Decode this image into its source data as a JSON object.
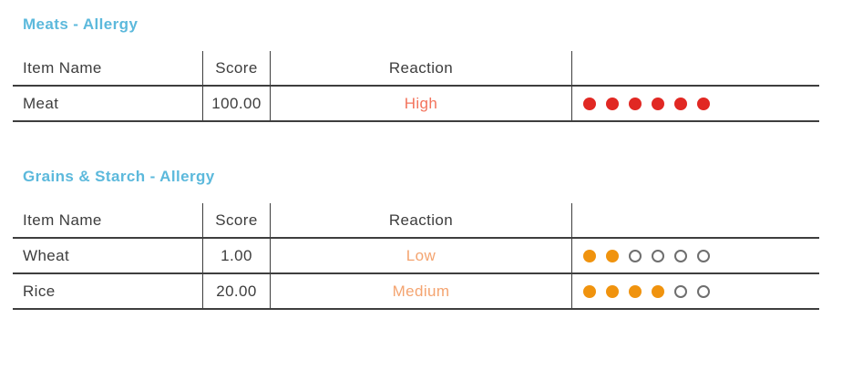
{
  "colors": {
    "section_title": "#5cb9dc",
    "body_text": "#3d3d3d",
    "rule": "#3e3e3e",
    "reaction_high": "#f3735c",
    "reaction_medium": "#f4a470",
    "reaction_low": "#f4a470",
    "dot_red": "#e12823",
    "dot_orange": "#f0930e",
    "dot_empty_border": "#6e6e6e"
  },
  "tables": [
    {
      "title": "Meats - Allergy",
      "headers": [
        "Item Name",
        "Score",
        "Reaction",
        ""
      ],
      "rows": [
        {
          "item": "Meat",
          "score": "100.00",
          "reaction": "High",
          "reaction_level": "high",
          "dots_filled": 6,
          "dots_total": 6,
          "dot_color": "red"
        }
      ]
    },
    {
      "title": "Grains & Starch - Allergy",
      "headers": [
        "Item Name",
        "Score",
        "Reaction",
        ""
      ],
      "rows": [
        {
          "item": "Wheat",
          "score": "1.00",
          "reaction": "Low",
          "reaction_level": "low",
          "dots_filled": 2,
          "dots_total": 6,
          "dot_color": "orange"
        },
        {
          "item": "Rice",
          "score": "20.00",
          "reaction": "Medium",
          "reaction_level": "medium",
          "dots_filled": 4,
          "dots_total": 6,
          "dot_color": "orange"
        }
      ]
    }
  ]
}
